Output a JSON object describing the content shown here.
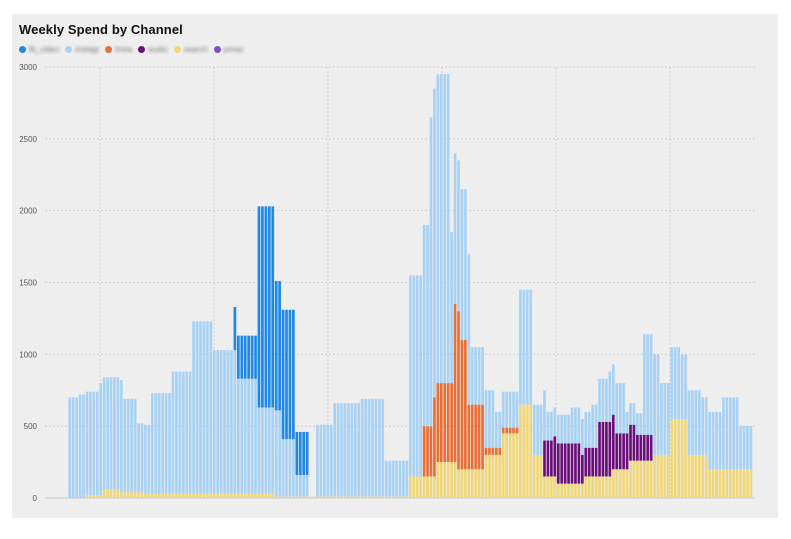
{
  "chart_data": {
    "type": "bar",
    "stacked": true,
    "title": "Weekly Spend by Channel",
    "ylim": [
      0,
      3000
    ],
    "yticks": [
      0,
      500,
      1000,
      1500,
      2000,
      2500,
      3000
    ],
    "grid": true,
    "legend_position": "top-left",
    "n_points": 200,
    "series": [
      {
        "key": "fb_video",
        "color": "#1e88e5",
        "segments": [
          [
            0,
            48,
            0
          ],
          [
            49,
            55,
            300
          ],
          [
            56,
            60,
            1400
          ],
          [
            61,
            66,
            900
          ],
          [
            67,
            70,
            300
          ],
          [
            71,
            199,
            0
          ]
        ]
      },
      {
        "key": "instagram",
        "color": "#a8d2f5",
        "segments": [
          [
            0,
            0,
            0
          ],
          [
            1,
            3,
            700
          ],
          [
            4,
            9,
            720
          ],
          [
            10,
            16,
            780
          ],
          [
            17,
            20,
            650
          ],
          [
            21,
            24,
            480
          ],
          [
            25,
            30,
            700
          ],
          [
            31,
            36,
            850
          ],
          [
            37,
            42,
            1200
          ],
          [
            43,
            49,
            1000
          ],
          [
            50,
            55,
            800
          ],
          [
            56,
            62,
            600
          ],
          [
            63,
            66,
            400
          ],
          [
            67,
            70,
            150
          ],
          [
            71,
            72,
            0
          ],
          [
            73,
            77,
            500
          ],
          [
            78,
            85,
            650
          ],
          [
            86,
            92,
            680
          ],
          [
            93,
            99,
            250
          ],
          [
            100,
            105,
            1400
          ],
          [
            106,
            111,
            2150
          ],
          [
            112,
            117,
            1050
          ],
          [
            118,
            124,
            400
          ],
          [
            125,
            131,
            250
          ],
          [
            132,
            135,
            800
          ],
          [
            136,
            139,
            350
          ],
          [
            140,
            146,
            200
          ],
          [
            147,
            152,
            250
          ],
          [
            153,
            157,
            300
          ],
          [
            158,
            162,
            350
          ],
          [
            163,
            167,
            150
          ],
          [
            168,
            172,
            700
          ],
          [
            173,
            178,
            500
          ],
          [
            179,
            184,
            450
          ],
          [
            185,
            190,
            400
          ],
          [
            191,
            195,
            500
          ],
          [
            196,
            199,
            300
          ]
        ]
      },
      {
        "key": "linear",
        "color": "#e87037",
        "segments": [
          [
            0,
            103,
            0
          ],
          [
            104,
            106,
            350
          ],
          [
            107,
            112,
            550
          ],
          [
            113,
            114,
            1100
          ],
          [
            115,
            116,
            900
          ],
          [
            117,
            119,
            450
          ],
          [
            120,
            121,
            450
          ],
          [
            122,
            126,
            50
          ],
          [
            127,
            131,
            40
          ],
          [
            132,
            199,
            0
          ]
        ]
      },
      {
        "key": "audio",
        "color": "#6a0f7a",
        "segments": [
          [
            0,
            138,
            0
          ],
          [
            139,
            141,
            250
          ],
          [
            142,
            149,
            280
          ],
          [
            150,
            154,
            200
          ],
          [
            155,
            159,
            380
          ],
          [
            160,
            165,
            250
          ],
          [
            166,
            170,
            180
          ],
          [
            171,
            199,
            0
          ]
        ]
      },
      {
        "key": "search",
        "color": "#f0d77a",
        "segments": [
          [
            0,
            5,
            0
          ],
          [
            6,
            10,
            20
          ],
          [
            11,
            15,
            60
          ],
          [
            16,
            22,
            40
          ],
          [
            23,
            60,
            30
          ],
          [
            61,
            99,
            10
          ],
          [
            100,
            107,
            150
          ],
          [
            108,
            113,
            250
          ],
          [
            114,
            121,
            200
          ],
          [
            122,
            126,
            300
          ],
          [
            127,
            131,
            450
          ],
          [
            132,
            135,
            650
          ],
          [
            136,
            138,
            300
          ],
          [
            139,
            142,
            150
          ],
          [
            143,
            150,
            100
          ],
          [
            151,
            158,
            150
          ],
          [
            159,
            163,
            200
          ],
          [
            164,
            170,
            260
          ],
          [
            171,
            175,
            300
          ],
          [
            176,
            180,
            550
          ],
          [
            181,
            186,
            300
          ],
          [
            187,
            199,
            200
          ]
        ]
      },
      {
        "key": "pmax",
        "color": "#7b52c4",
        "segments": [
          [
            0,
            199,
            0
          ]
        ]
      }
    ]
  },
  "legend": [
    {
      "key": "fb_video",
      "label": "fb_video",
      "color": "#1e88e5"
    },
    {
      "key": "instagram",
      "label": "instagr",
      "color": "#a8d2f5"
    },
    {
      "key": "linear",
      "label": "linea",
      "color": "#e87037"
    },
    {
      "key": "audio",
      "label": "audio",
      "color": "#6a0f7a"
    },
    {
      "key": "search",
      "label": "search",
      "color": "#f0d77a"
    },
    {
      "key": "pmax",
      "label": "pmax",
      "color": "#7b52c4"
    }
  ]
}
